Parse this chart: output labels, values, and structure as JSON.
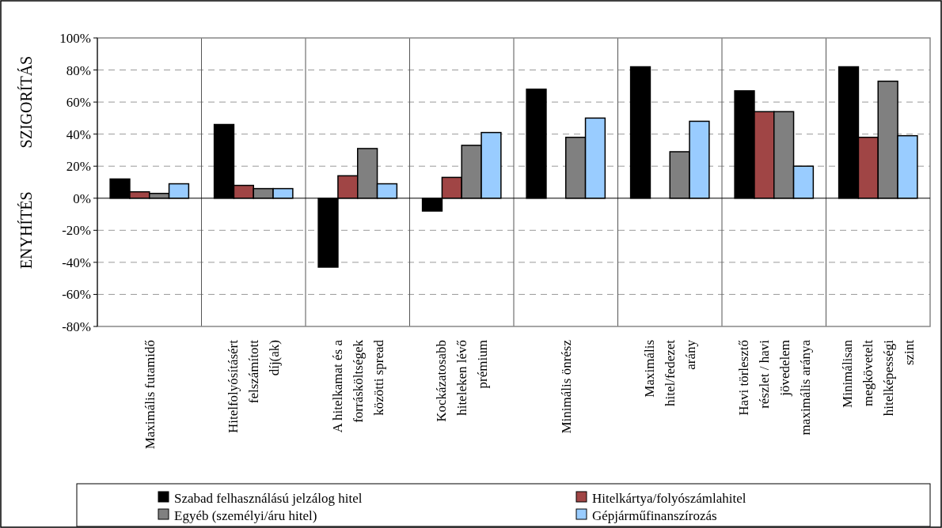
{
  "chart_data": {
    "type": "bar",
    "ylabel": "SZIGORÍTÁS",
    "annotations": [
      "ENYHÍTÉS"
    ],
    "categories": [
      "Maximális futamidő",
      "Hitelfolyósításért felszámított díj(ak)",
      "A hitelkamat és a forrásköltségek közötti spread",
      "Kockázatosabb hiteleken lévő prémium",
      "Minimális önrész",
      "Maximális hitel/fedezet arány",
      "Havi törlesztő részlet / havi jövedelem maximális aránya",
      "Minimálisan megkövetelt hitelképességi szint"
    ],
    "series": [
      {
        "name": "Szabad felhasználású jelzálog hitel",
        "color": "#000000",
        "values": [
          12,
          46,
          -43,
          -8,
          68,
          82,
          67,
          82
        ]
      },
      {
        "name": "Hitelkártya/folyószámlahitel",
        "color": "#a04545",
        "values": [
          4,
          8,
          14,
          13,
          null,
          null,
          54,
          38
        ]
      },
      {
        "name": "Egyéb (személyi/áru hitel)",
        "color": "#808080",
        "values": [
          3,
          6,
          31,
          33,
          38,
          29,
          54,
          73
        ]
      },
      {
        "name": "Gépjárműfinanszírozás",
        "color": "#99ccff",
        "values": [
          9,
          6,
          9,
          41,
          50,
          48,
          20,
          39
        ]
      }
    ],
    "ylim": [
      -80,
      100
    ],
    "yticks": [
      {
        "value": -80,
        "label": "-80%"
      },
      {
        "value": -60,
        "label": "-60%"
      },
      {
        "value": -40,
        "label": "-40%"
      },
      {
        "value": -20,
        "label": "-20%"
      },
      {
        "value": 0,
        "label": "0%"
      },
      {
        "value": 20,
        "label": "20%"
      },
      {
        "value": 40,
        "label": "40%"
      },
      {
        "value": 60,
        "label": "60%"
      },
      {
        "value": 80,
        "label": "80%"
      },
      {
        "value": 100,
        "label": "100%"
      }
    ],
    "grid": "y",
    "legend": "bottom"
  }
}
